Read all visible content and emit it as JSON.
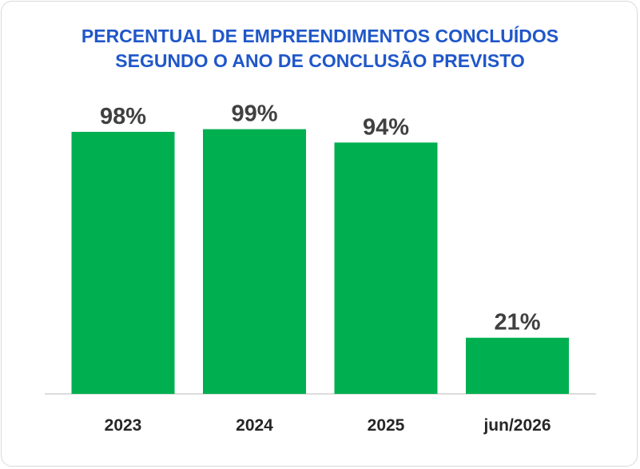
{
  "chart_data": {
    "type": "bar",
    "title": [
      "PERCENTUAL DE EMPREENDIMENTOS CONCLUÍDOS",
      "SEGUNDO O ANO DE CONCLUSÃO PREVISTO"
    ],
    "categories": [
      "2023",
      "2024",
      "2025",
      "jun/2026"
    ],
    "values": [
      98,
      99,
      94,
      21
    ],
    "value_labels": [
      "98%",
      "99%",
      "94%",
      "21%"
    ],
    "xlabel": "",
    "ylabel": "",
    "ylim": [
      0,
      100
    ],
    "grid": false,
    "legend": "none",
    "colors": {
      "bar": "#00b050",
      "title": "#2057c9",
      "labels": "#404040"
    }
  }
}
